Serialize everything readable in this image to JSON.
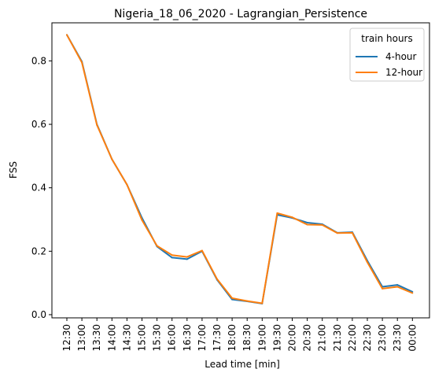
{
  "chart_data": {
    "type": "line",
    "title": "Nigeria_18_06_2020 - Lagrangian_Persistence",
    "xlabel": "Lead time [min]",
    "ylabel": "FSS",
    "categories": [
      "12:30",
      "13:00",
      "13:30",
      "14:00",
      "14:30",
      "15:00",
      "15:30",
      "16:00",
      "16:30",
      "17:00",
      "17:30",
      "18:00",
      "18:30",
      "19:00",
      "19:30",
      "20:00",
      "20:30",
      "21:00",
      "21:30",
      "22:00",
      "22:30",
      "23:00",
      "23:30",
      "00:00"
    ],
    "yticks": [
      "0.0",
      "0.2",
      "0.4",
      "0.6",
      "0.8"
    ],
    "ylim": [
      -0.01,
      0.92
    ],
    "grid": false,
    "legend": {
      "title": "train hours",
      "placement": "top-right"
    },
    "series": [
      {
        "name": "4-hour",
        "color": "#1f77b4",
        "values": [
          0.882,
          0.798,
          0.6,
          0.49,
          0.41,
          0.305,
          0.215,
          0.18,
          0.175,
          0.2,
          0.11,
          0.048,
          0.042,
          0.035,
          0.315,
          0.305,
          0.29,
          0.285,
          0.258,
          0.26,
          0.17,
          0.088,
          0.094,
          0.072
        ]
      },
      {
        "name": "12-hour",
        "color": "#ff7f0e",
        "values": [
          0.882,
          0.795,
          0.598,
          0.49,
          0.41,
          0.298,
          0.217,
          0.188,
          0.182,
          0.202,
          0.112,
          0.052,
          0.043,
          0.036,
          0.32,
          0.307,
          0.284,
          0.283,
          0.257,
          0.258,
          0.165,
          0.082,
          0.088,
          0.068
        ]
      }
    ]
  }
}
